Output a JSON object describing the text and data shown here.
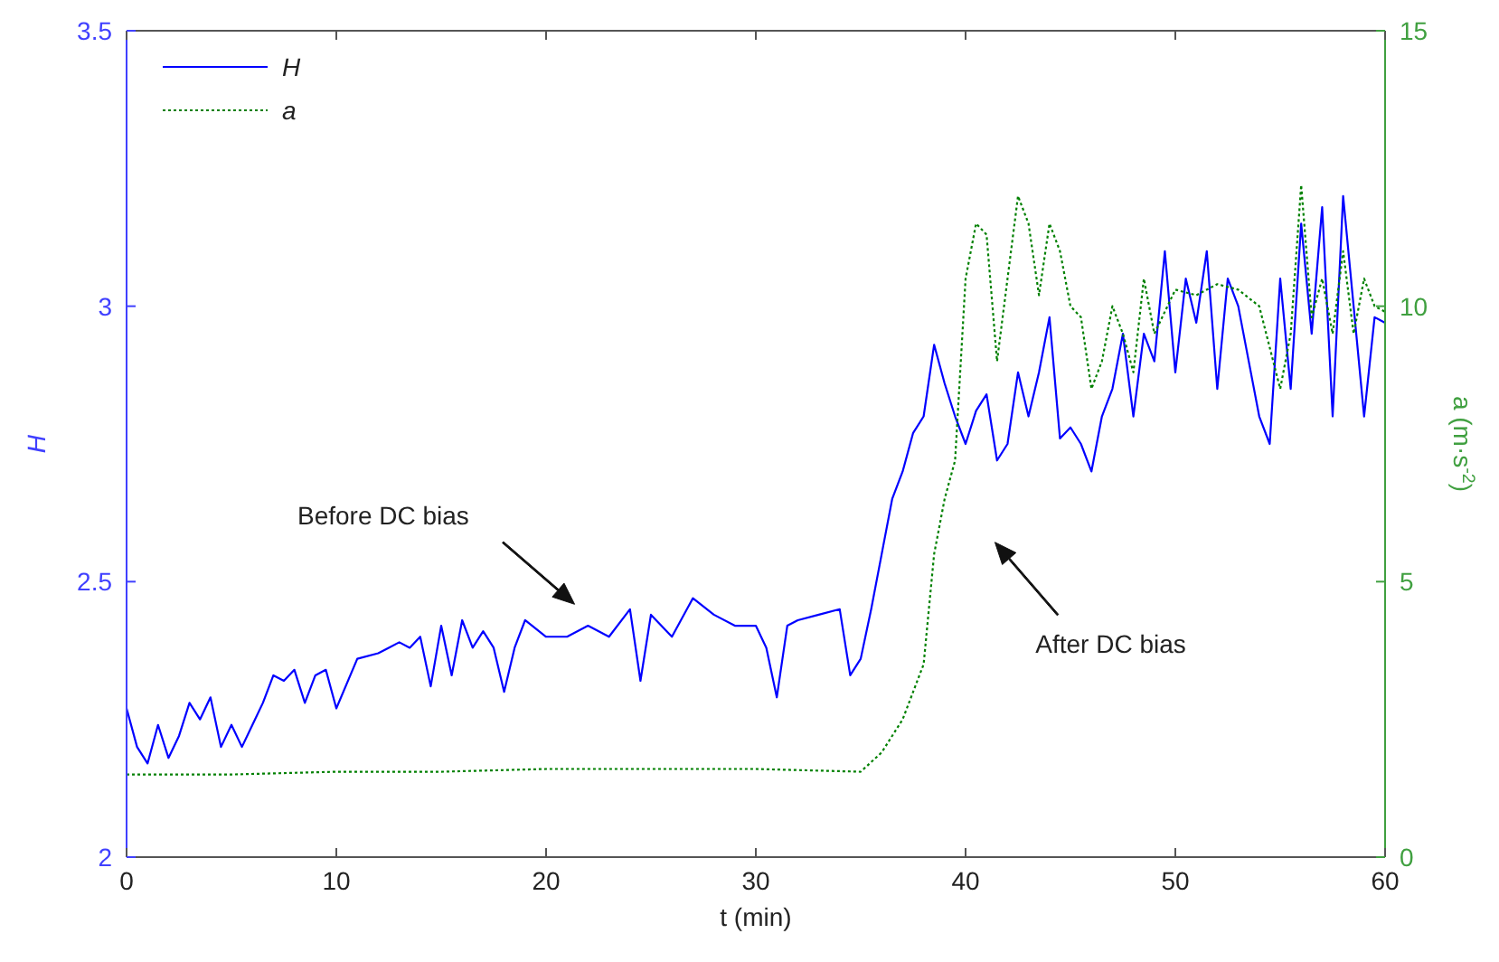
{
  "chart_data": {
    "type": "line",
    "xlabel": "t (min)",
    "ylabel": "H",
    "y2label": "a (m·s$^{-2}$)",
    "xlim": [
      0,
      60
    ],
    "xticks": [
      0,
      10,
      20,
      30,
      40,
      50,
      60
    ],
    "ylim": [
      2,
      3.5
    ],
    "yticks": [
      2,
      2.5,
      3,
      3.5
    ],
    "y2lim": [
      0,
      15
    ],
    "y2ticks": [
      0,
      5,
      10,
      15
    ],
    "legend": "top left",
    "grid": false,
    "annotations": [
      "Before DC bias",
      "After DC bias"
    ],
    "series": [
      {
        "name": "H",
        "color": "#0000ff",
        "line_style": "solid",
        "x": [
          0,
          0.5,
          1,
          1.5,
          2,
          2.5,
          3,
          3.5,
          4,
          4.5,
          5,
          5.5,
          6,
          6.5,
          7,
          7.5,
          8,
          8.5,
          9,
          9.5,
          10,
          11,
          12,
          12.5,
          13,
          13.5,
          14,
          14.5,
          15,
          15.5,
          16,
          16.5,
          17,
          17.5,
          18,
          18.5,
          19,
          20,
          21,
          22,
          23,
          24,
          24.5,
          25,
          26,
          27,
          28,
          29,
          30,
          30.5,
          31,
          31.5,
          32,
          33,
          34,
          34.5,
          35,
          35.5,
          36,
          36.5,
          37,
          37.5,
          38,
          38.5,
          39,
          39.5,
          40,
          40.5,
          41,
          41.5,
          42,
          42.5,
          43,
          43.5,
          44,
          44.5,
          45,
          45.5,
          46,
          46.5,
          47,
          47.5,
          48,
          48.5,
          49,
          49.5,
          50,
          50.5,
          51,
          51.5,
          52,
          52.5,
          53,
          53.5,
          54,
          54.5,
          55,
          55.5,
          56,
          56.5,
          57,
          57.5,
          58,
          58.5,
          59,
          59.5,
          60
        ],
        "values": [
          2.27,
          2.2,
          2.17,
          2.24,
          2.18,
          2.22,
          2.28,
          2.25,
          2.29,
          2.2,
          2.24,
          2.2,
          2.24,
          2.28,
          2.33,
          2.32,
          2.34,
          2.28,
          2.33,
          2.34,
          2.27,
          2.36,
          2.37,
          2.38,
          2.39,
          2.38,
          2.4,
          2.31,
          2.42,
          2.33,
          2.43,
          2.38,
          2.41,
          2.38,
          2.3,
          2.38,
          2.43,
          2.4,
          2.4,
          2.42,
          2.4,
          2.45,
          2.32,
          2.44,
          2.4,
          2.47,
          2.44,
          2.42,
          2.42,
          2.38,
          2.29,
          2.42,
          2.43,
          2.44,
          2.45,
          2.33,
          2.36,
          2.45,
          2.55,
          2.65,
          2.7,
          2.77,
          2.8,
          2.93,
          2.86,
          2.8,
          2.75,
          2.81,
          2.84,
          2.72,
          2.75,
          2.88,
          2.8,
          2.88,
          2.98,
          2.76,
          2.78,
          2.75,
          2.7,
          2.8,
          2.85,
          2.95,
          2.8,
          2.95,
          2.9,
          3.1,
          2.88,
          3.05,
          2.97,
          3.1,
          2.85,
          3.05,
          3,
          2.9,
          2.8,
          2.75,
          3.05,
          2.85,
          3.15,
          2.95,
          3.18,
          2.8,
          3.2,
          3,
          2.8,
          2.98,
          2.97
        ]
      },
      {
        "name": "a",
        "color": "#008000",
        "line_style": "dotted",
        "axis": "y2",
        "x": [
          0,
          5,
          10,
          15,
          20,
          25,
          30,
          35,
          36,
          37,
          37.5,
          38,
          38.5,
          39,
          39.5,
          40,
          40.5,
          41,
          41.5,
          42,
          42.5,
          43,
          43.5,
          44,
          44.5,
          45,
          45.5,
          46,
          46.5,
          47,
          47.5,
          48,
          48.5,
          49,
          50,
          51,
          52,
          53,
          54,
          55,
          55.5,
          56,
          56.5,
          57,
          57.5,
          58,
          58.5,
          59,
          59.5,
          60
        ],
        "values": [
          1.5,
          1.5,
          1.55,
          1.55,
          1.6,
          1.6,
          1.6,
          1.55,
          1.9,
          2.5,
          3,
          3.5,
          5.5,
          6.5,
          7.2,
          10.5,
          11.5,
          11.3,
          9,
          10.5,
          12,
          11.5,
          10.2,
          11.5,
          11,
          10,
          9.8,
          8.5,
          9,
          10,
          9.5,
          8.8,
          10.5,
          9.5,
          10.3,
          10.2,
          10.4,
          10.3,
          10,
          8.5,
          9.5,
          12.2,
          9.8,
          10.5,
          9.5,
          11,
          9.5,
          10.5,
          10,
          9.9
        ]
      }
    ]
  }
}
